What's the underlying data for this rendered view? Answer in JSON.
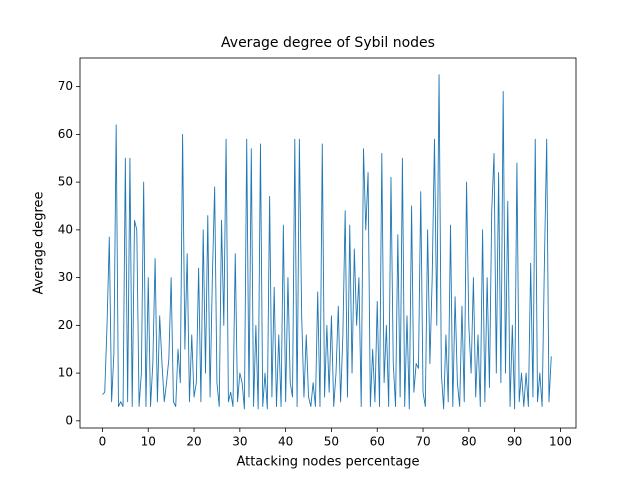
{
  "chart_data": {
    "type": "line",
    "title": "Average degree of Sybil nodes",
    "x_label": "Attacking nodes percentage",
    "y_label": "Average degree",
    "x": [
      0,
      0.5,
      1,
      1.5,
      2,
      2.5,
      3,
      3.5,
      4,
      4.5,
      5,
      5.5,
      6,
      6.5,
      7,
      7.5,
      8,
      8.5,
      9,
      9.5,
      10,
      10.5,
      11,
      11.5,
      12,
      12.5,
      13,
      13.5,
      14,
      14.5,
      15,
      15.5,
      16,
      16.5,
      17,
      17.5,
      18,
      18.5,
      19,
      19.5,
      20,
      20.5,
      21,
      21.5,
      22,
      22.5,
      23,
      23.5,
      24,
      24.5,
      25,
      25.5,
      26,
      26.5,
      27,
      27.5,
      28,
      28.5,
      29,
      29.5,
      30,
      30.5,
      31,
      31.5,
      32,
      32.5,
      33,
      33.5,
      34,
      34.5,
      35,
      35.5,
      36,
      36.5,
      37,
      37.5,
      38,
      38.5,
      39,
      39.5,
      40,
      40.5,
      41,
      41.5,
      42,
      42.5,
      43,
      43.5,
      44,
      44.5,
      45,
      45.5,
      46,
      46.5,
      47,
      47.5,
      48,
      48.5,
      49,
      49.5,
      50,
      50.5,
      51,
      51.5,
      52,
      52.5,
      53,
      53.5,
      54,
      54.5,
      55,
      55.5,
      56,
      56.5,
      57,
      57.5,
      58,
      58.5,
      59,
      59.5,
      60,
      60.5,
      61,
      61.5,
      62,
      62.5,
      63,
      63.5,
      64,
      64.5,
      65,
      65.5,
      66,
      66.5,
      67,
      67.5,
      68,
      68.5,
      69,
      69.5,
      70,
      70.5,
      71,
      71.5,
      72,
      72.5,
      73,
      73.5,
      74,
      74.5,
      75,
      75.5,
      76,
      76.5,
      77,
      77.5,
      78,
      78.5,
      79,
      79.5,
      80,
      80.5,
      81,
      81.5,
      82,
      82.5,
      83,
      83.5,
      84,
      84.5,
      85,
      85.5,
      86,
      86.5,
      87,
      87.5,
      88,
      88.5,
      89,
      89.5,
      90,
      90.5,
      91,
      91.5,
      92,
      92.5,
      93,
      93.5,
      94,
      94.5,
      95,
      95.5,
      96,
      96.5,
      97,
      97.5,
      98
    ],
    "series": [
      {
        "name": "Average degree",
        "color": "#1f77b4",
        "values": [
          5.5,
          6,
          20,
          38.5,
          4,
          14,
          62,
          3,
          4,
          3,
          55,
          4,
          55,
          3,
          42,
          40,
          3,
          10,
          50,
          3,
          30,
          3,
          12,
          34,
          4,
          22,
          12,
          4,
          8,
          13,
          30,
          4,
          3,
          15,
          8,
          60,
          15,
          35,
          4,
          18,
          5,
          8,
          32,
          4,
          40,
          10,
          43,
          5,
          30,
          49,
          8,
          3,
          42,
          20,
          59,
          4,
          6,
          3,
          35,
          4,
          10,
          8,
          2.5,
          59,
          5,
          57,
          3,
          20,
          2.5,
          58,
          3,
          10,
          2.5,
          47,
          5,
          28,
          3,
          18,
          3,
          41,
          4,
          30,
          8,
          5,
          59,
          3,
          59,
          22,
          5,
          18,
          5,
          3,
          8,
          3,
          27,
          3,
          58,
          5,
          20,
          6,
          22,
          3,
          10,
          24,
          4,
          18,
          44,
          5,
          41,
          10,
          36,
          20,
          30,
          3,
          57,
          40,
          52,
          3,
          15,
          4,
          25,
          3,
          56,
          8,
          20,
          3,
          51,
          12,
          3,
          39,
          5,
          55,
          3,
          22,
          2.5,
          45,
          6,
          12,
          11,
          48,
          6,
          3,
          40,
          12,
          30,
          59,
          20,
          72.5,
          10,
          2.5,
          18,
          4,
          41,
          3,
          26,
          8,
          3,
          24,
          4,
          50,
          20,
          10,
          30,
          5,
          18,
          3,
          40,
          4,
          30,
          7,
          44,
          56,
          10,
          52,
          8,
          69,
          10,
          46,
          3,
          20,
          2.5,
          54,
          4,
          10,
          3,
          10,
          3,
          33,
          5,
          59,
          4,
          10,
          3,
          33,
          59,
          4,
          13.5
        ]
      }
    ],
    "xlim": [
      -4.9,
      103.4
    ],
    "ylim": [
      -1.5,
      76
    ],
    "xticks": [
      0,
      10,
      20,
      30,
      40,
      50,
      60,
      70,
      80,
      90,
      100
    ],
    "yticks": [
      0,
      10,
      20,
      30,
      40,
      50,
      60,
      70
    ]
  }
}
